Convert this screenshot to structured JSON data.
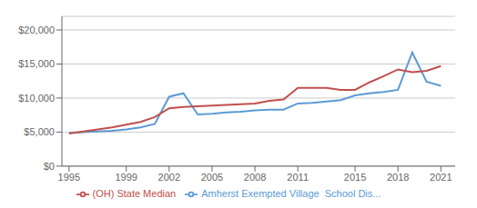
{
  "chart_data": {
    "type": "line",
    "x": [
      1995,
      1996,
      1997,
      1998,
      1999,
      2000,
      2001,
      2002,
      2003,
      2004,
      2005,
      2006,
      2007,
      2008,
      2009,
      2010,
      2011,
      2012,
      2013,
      2014,
      2015,
      2016,
      2017,
      2018,
      2019,
      2020,
      2021
    ],
    "series": [
      {
        "name": "Amherst Exempted Village  School Dis...",
        "color": "#5b9bd5",
        "values": [
          4900,
          5000,
          5100,
          5200,
          5400,
          5700,
          6200,
          10200,
          10700,
          7600,
          7700,
          7900,
          8000,
          8200,
          8300,
          8300,
          9200,
          9300,
          9500,
          9700,
          10400,
          10700,
          10900,
          11200,
          16700,
          12400,
          11800
        ]
      },
      {
        "name": "(OH) State Median",
        "color": "#c0504d",
        "values": [
          4800,
          5100,
          5400,
          5700,
          6100,
          6500,
          7200,
          8500,
          8700,
          8800,
          8900,
          9000,
          9100,
          9200,
          9600,
          9800,
          11500,
          11500,
          11500,
          11200,
          11200,
          12300,
          13200,
          14200,
          13800,
          14000,
          14700
        ]
      }
    ],
    "xlim": [
      1994.5,
      2022
    ],
    "xticks": [
      1995,
      1999,
      2002,
      2005,
      2008,
      2011,
      2015,
      2018,
      2021
    ],
    "ylim": [
      0,
      22000
    ],
    "yticks": [
      {
        "value": 0,
        "label": "$0"
      },
      {
        "value": 5000,
        "label": "$5,000"
      },
      {
        "value": 10000,
        "label": "$10,000"
      },
      {
        "value": 15000,
        "label": "$15,000"
      },
      {
        "value": 20000,
        "label": "$20,000"
      }
    ],
    "grid": true,
    "legend": "bottom"
  }
}
